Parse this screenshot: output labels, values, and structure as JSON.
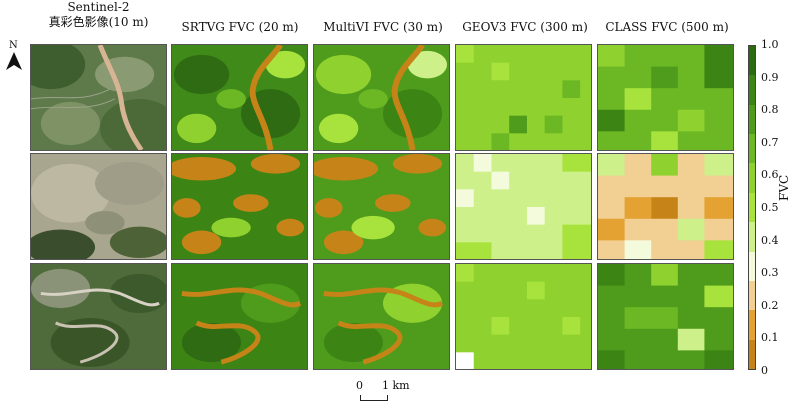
{
  "columns": [
    {
      "line1": "Sentinel-2",
      "line2": "真彩色影像(10 m)"
    },
    {
      "line1": "SRTVG FVC (20 m)"
    },
    {
      "line1": "MultiVI FVC (30 m)"
    },
    {
      "line1": "GEOV3 FVC (300 m)"
    },
    {
      "line1": "CLASS FVC (500 m)"
    }
  ],
  "north_label": "N",
  "colorbar": {
    "title": "FVC",
    "ticks": [
      "1.0",
      "0.9",
      "0.8",
      "0.7",
      "0.6",
      "0.5",
      "0.4",
      "0.3",
      "0.2",
      "0.1",
      "0"
    ],
    "colors_top_to_bottom": [
      "#2b6a10",
      "#3c8515",
      "#4f9c1c",
      "#6cb824",
      "#8fd12e",
      "#a7e33c",
      "#cdf08a",
      "#f4fadc",
      "#f2cf92",
      "#e3a232",
      "#c68418"
    ]
  },
  "scale_bar": {
    "left": "0",
    "right": "1 km"
  }
}
